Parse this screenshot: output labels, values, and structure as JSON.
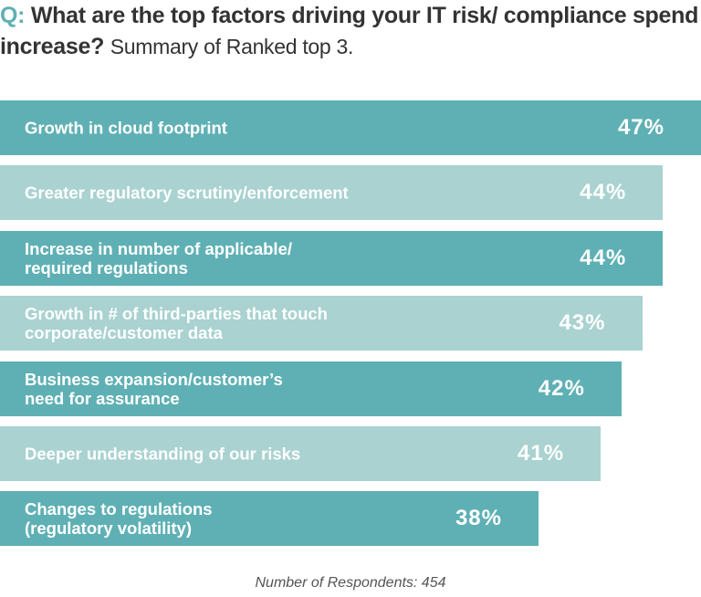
{
  "title": {
    "prefix": "Q:",
    "question": "What are the top factors driving your IT risk/ compliance spend increase?",
    "subtitle": "Summary of Ranked top 3."
  },
  "colors": {
    "dark": "#5fb0b4",
    "light": "#a9d2d1",
    "accent": "#5fb0b4"
  },
  "chart_data": {
    "type": "bar",
    "orientation": "horizontal",
    "categories": [
      "Growth in cloud footprint",
      "Greater regulatory scrutiny/enforcement",
      "Increase in number of applicable/\nrequired regulations",
      "Growth in # of third-parties that touch\ncorporate/customer data",
      "Business expansion/customer’s\nneed for assurance",
      "Deeper understanding of our risks",
      "Changes to regulations\n(regulatory volatility)"
    ],
    "values": [
      47,
      44,
      44,
      43,
      42,
      41,
      38
    ],
    "value_labels": [
      "47%",
      "44%",
      "44%",
      "43%",
      "42%",
      "41%",
      "38%"
    ],
    "unit": "%",
    "grid": false,
    "legend": "none"
  },
  "footer": "Number of Respondents: 454"
}
